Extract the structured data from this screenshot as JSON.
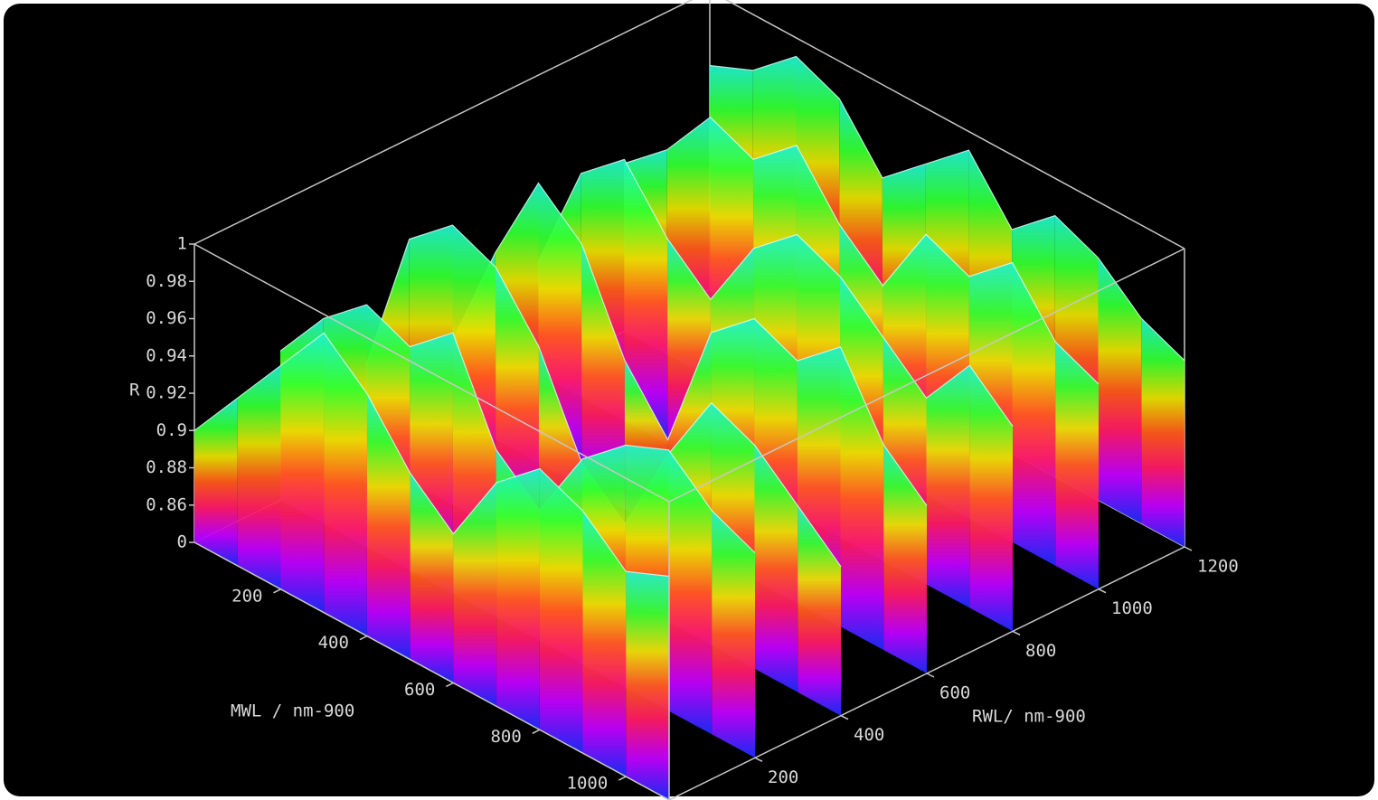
{
  "chart_data": {
    "type": "surface3d",
    "xlabel": "MWL / nm-900",
    "ylabel": "RWL/ nm-900",
    "zlabel": "R",
    "xlim": [
      0,
      1100
    ],
    "ylim": [
      0,
      1200
    ],
    "xticks": [
      200,
      400,
      600,
      800,
      1000
    ],
    "yticks": [
      200,
      400,
      600,
      800,
      1000,
      1200
    ],
    "zticks": [
      0,
      0.86,
      0.88,
      0.9,
      0.92,
      0.94,
      0.96,
      0.98,
      1
    ],
    "x": [
      0,
      100,
      200,
      300,
      400,
      500,
      600,
      700,
      800,
      900,
      1000,
      1100
    ],
    "rows": [
      {
        "y": 1200,
        "values": [
          0.96,
          0.97,
          0.99,
          0.98,
          0.95,
          0.97,
          0.99,
          0.96,
          0.98,
          0.97,
          0.95,
          0.94
        ]
      },
      {
        "y": 1000,
        "values": [
          0.93,
          0.95,
          0.98,
          0.97,
          0.99,
          0.96,
          0.94,
          0.98,
          0.97,
          0.99,
          0.96,
          0.95
        ]
      },
      {
        "y": 800,
        "values": [
          0.9,
          0.96,
          0.98,
          0.95,
          0.93,
          0.97,
          0.99,
          0.98,
          0.96,
          0.94,
          0.97,
          0.95
        ]
      },
      {
        "y": 600,
        "values": [
          0.88,
          0.94,
          0.99,
          0.97,
          0.92,
          0.89,
          0.96,
          0.98,
          0.97,
          0.99,
          0.95,
          0.93
        ]
      },
      {
        "y": 400,
        "values": [
          0.89,
          0.97,
          0.99,
          0.98,
          0.95,
          0.9,
          0.88,
          0.93,
          0.97,
          0.96,
          0.94,
          0.92
        ]
      },
      {
        "y": 200,
        "values": [
          0.92,
          0.95,
          0.97,
          0.96,
          0.98,
          0.93,
          0.91,
          0.95,
          0.97,
          0.98,
          0.96,
          0.95
        ]
      },
      {
        "y": 0,
        "values": [
          0.9,
          0.93,
          0.96,
          0.99,
          0.97,
          0.94,
          0.92,
          0.96,
          0.98,
          0.97,
          0.95,
          0.96
        ]
      }
    ]
  }
}
